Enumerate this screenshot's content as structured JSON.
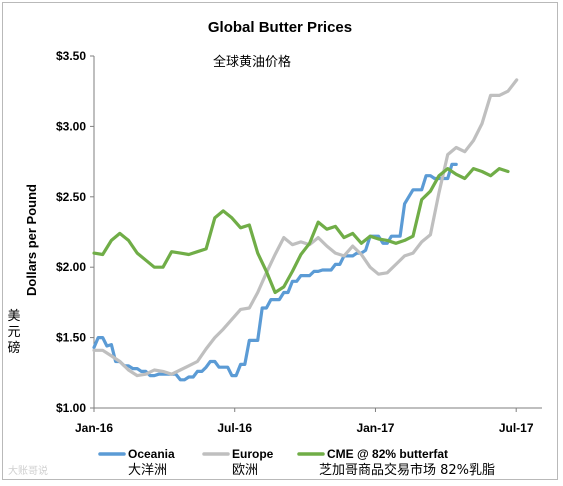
{
  "chart_data": {
    "type": "line",
    "title": "Global Butter Prices",
    "subtitle_cn": "全球黄油价格",
    "ylabel": "Dollars per Pound",
    "ylabel_cn": "美元磅",
    "ylim": [
      1.0,
      3.5
    ],
    "y_ticks": [
      "$1.00",
      "$1.50",
      "$2.00",
      "$2.50",
      "$3.00",
      "$3.50"
    ],
    "x_ticks": [
      {
        "label": "Jan-16",
        "month": 0
      },
      {
        "label": "Jul-16",
        "month": 6
      },
      {
        "label": "Jan-17",
        "month": 12
      },
      {
        "label": "Jul-17",
        "month": 18
      }
    ],
    "x_range_months": [
      0,
      19.1
    ],
    "x_unit": "months since Jan-16",
    "grid": false,
    "legend_position": "bottom",
    "series": [
      {
        "name": "Oceania",
        "name_cn": "大洋洲",
        "color": "#5b9bd5",
        "points": [
          [
            0.0,
            1.43
          ],
          [
            0.18,
            1.5
          ],
          [
            0.37,
            1.5
          ],
          [
            0.55,
            1.44
          ],
          [
            0.74,
            1.45
          ],
          [
            0.92,
            1.33
          ],
          [
            1.1,
            1.33
          ],
          [
            1.29,
            1.3
          ],
          [
            1.47,
            1.3
          ],
          [
            1.66,
            1.28
          ],
          [
            1.84,
            1.28
          ],
          [
            2.02,
            1.26
          ],
          [
            2.21,
            1.26
          ],
          [
            2.39,
            1.23
          ],
          [
            2.57,
            1.23
          ],
          [
            2.76,
            1.24
          ],
          [
            2.94,
            1.24
          ],
          [
            3.12,
            1.24
          ],
          [
            3.31,
            1.24
          ],
          [
            3.49,
            1.24
          ],
          [
            3.68,
            1.2
          ],
          [
            3.86,
            1.2
          ],
          [
            4.04,
            1.22
          ],
          [
            4.23,
            1.22
          ],
          [
            4.41,
            1.26
          ],
          [
            4.6,
            1.26
          ],
          [
            4.78,
            1.29
          ],
          [
            4.96,
            1.33
          ],
          [
            5.15,
            1.33
          ],
          [
            5.33,
            1.29
          ],
          [
            5.51,
            1.29
          ],
          [
            5.7,
            1.29
          ],
          [
            5.88,
            1.23
          ],
          [
            6.06,
            1.23
          ],
          [
            6.25,
            1.31
          ],
          [
            6.43,
            1.31
          ],
          [
            6.62,
            1.48
          ],
          [
            6.8,
            1.48
          ],
          [
            6.98,
            1.48
          ],
          [
            7.17,
            1.71
          ],
          [
            7.35,
            1.71
          ],
          [
            7.54,
            1.77
          ],
          [
            7.72,
            1.77
          ],
          [
            7.9,
            1.77
          ],
          [
            8.09,
            1.82
          ],
          [
            8.27,
            1.82
          ],
          [
            8.46,
            1.9
          ],
          [
            8.64,
            1.9
          ],
          [
            8.82,
            1.94
          ],
          [
            9.01,
            1.94
          ],
          [
            9.19,
            1.94
          ],
          [
            9.38,
            1.97
          ],
          [
            9.56,
            1.97
          ],
          [
            9.74,
            1.98
          ],
          [
            9.93,
            1.98
          ],
          [
            10.11,
            1.98
          ],
          [
            10.29,
            2.02
          ],
          [
            10.48,
            2.02
          ],
          [
            10.66,
            2.08
          ],
          [
            10.85,
            2.08
          ],
          [
            11.03,
            2.08
          ],
          [
            11.21,
            2.1
          ],
          [
            11.4,
            2.1
          ],
          [
            11.58,
            2.12
          ],
          [
            11.77,
            2.22
          ],
          [
            11.95,
            2.22
          ],
          [
            12.13,
            2.22
          ],
          [
            12.32,
            2.17
          ],
          [
            12.5,
            2.17
          ],
          [
            12.68,
            2.22
          ],
          [
            12.87,
            2.22
          ],
          [
            13.05,
            2.22
          ],
          [
            13.24,
            2.45
          ],
          [
            13.42,
            2.5
          ],
          [
            13.6,
            2.55
          ],
          [
            13.79,
            2.55
          ],
          [
            13.97,
            2.55
          ],
          [
            14.16,
            2.65
          ],
          [
            14.34,
            2.65
          ],
          [
            14.52,
            2.63
          ],
          [
            14.71,
            2.63
          ],
          [
            14.89,
            2.63
          ],
          [
            15.08,
            2.63
          ],
          [
            15.26,
            2.73
          ],
          [
            15.44,
            2.73
          ]
        ]
      },
      {
        "name": "Europe",
        "name_cn": "欧洲",
        "color": "#bfbfbf",
        "points": [
          [
            0.0,
            1.41
          ],
          [
            0.37,
            1.41
          ],
          [
            0.74,
            1.37
          ],
          [
            1.1,
            1.33
          ],
          [
            1.47,
            1.27
          ],
          [
            1.84,
            1.23
          ],
          [
            2.21,
            1.24
          ],
          [
            2.57,
            1.27
          ],
          [
            2.94,
            1.26
          ],
          [
            3.31,
            1.24
          ],
          [
            3.68,
            1.27
          ],
          [
            4.04,
            1.3
          ],
          [
            4.41,
            1.33
          ],
          [
            4.78,
            1.42
          ],
          [
            5.15,
            1.5
          ],
          [
            5.51,
            1.56
          ],
          [
            5.88,
            1.63
          ],
          [
            6.25,
            1.7
          ],
          [
            6.62,
            1.71
          ],
          [
            6.98,
            1.82
          ],
          [
            7.35,
            1.96
          ],
          [
            7.72,
            2.09
          ],
          [
            8.09,
            2.21
          ],
          [
            8.46,
            2.16
          ],
          [
            8.82,
            2.18
          ],
          [
            9.19,
            2.16
          ],
          [
            9.56,
            2.21
          ],
          [
            9.93,
            2.15
          ],
          [
            10.29,
            2.1
          ],
          [
            10.66,
            2.08
          ],
          [
            11.03,
            2.15
          ],
          [
            11.4,
            2.09
          ],
          [
            11.77,
            2.0
          ],
          [
            12.13,
            1.95
          ],
          [
            12.5,
            1.96
          ],
          [
            12.87,
            2.02
          ],
          [
            13.24,
            2.08
          ],
          [
            13.6,
            2.1
          ],
          [
            13.97,
            2.18
          ],
          [
            14.34,
            2.23
          ],
          [
            14.71,
            2.53
          ],
          [
            15.08,
            2.8
          ],
          [
            15.44,
            2.85
          ],
          [
            15.81,
            2.82
          ],
          [
            16.18,
            2.9
          ],
          [
            16.54,
            3.02
          ],
          [
            16.91,
            3.22
          ],
          [
            17.28,
            3.22
          ],
          [
            17.65,
            3.25
          ],
          [
            18.02,
            3.33
          ]
        ]
      },
      {
        "name": "CME @ 82% butterfat",
        "name_cn": "芝加哥商品交易市场 82%乳脂",
        "color": "#70ad47",
        "points": [
          [
            0.0,
            2.1
          ],
          [
            0.37,
            2.09
          ],
          [
            0.74,
            2.19
          ],
          [
            1.1,
            2.24
          ],
          [
            1.47,
            2.19
          ],
          [
            1.84,
            2.1
          ],
          [
            2.21,
            2.05
          ],
          [
            2.57,
            2.0
          ],
          [
            2.94,
            2.0
          ],
          [
            3.31,
            2.11
          ],
          [
            3.68,
            2.1
          ],
          [
            4.04,
            2.09
          ],
          [
            4.41,
            2.11
          ],
          [
            4.78,
            2.13
          ],
          [
            5.15,
            2.35
          ],
          [
            5.51,
            2.4
          ],
          [
            5.88,
            2.35
          ],
          [
            6.25,
            2.28
          ],
          [
            6.62,
            2.3
          ],
          [
            6.98,
            2.1
          ],
          [
            7.35,
            1.97
          ],
          [
            7.72,
            1.82
          ],
          [
            8.09,
            1.86
          ],
          [
            8.46,
            1.97
          ],
          [
            8.82,
            2.09
          ],
          [
            9.19,
            2.17
          ],
          [
            9.56,
            2.32
          ],
          [
            9.93,
            2.27
          ],
          [
            10.29,
            2.29
          ],
          [
            10.66,
            2.21
          ],
          [
            11.03,
            2.24
          ],
          [
            11.4,
            2.17
          ],
          [
            11.77,
            2.22
          ],
          [
            12.13,
            2.2
          ],
          [
            12.5,
            2.19
          ],
          [
            12.87,
            2.17
          ],
          [
            13.24,
            2.19
          ],
          [
            13.6,
            2.22
          ],
          [
            13.97,
            2.48
          ],
          [
            14.34,
            2.54
          ],
          [
            14.71,
            2.65
          ],
          [
            15.08,
            2.7
          ],
          [
            15.44,
            2.66
          ],
          [
            15.81,
            2.63
          ],
          [
            16.18,
            2.7
          ],
          [
            16.54,
            2.68
          ],
          [
            16.91,
            2.65
          ],
          [
            17.28,
            2.7
          ],
          [
            17.65,
            2.68
          ]
        ]
      }
    ]
  },
  "watermark": "大账哥说"
}
